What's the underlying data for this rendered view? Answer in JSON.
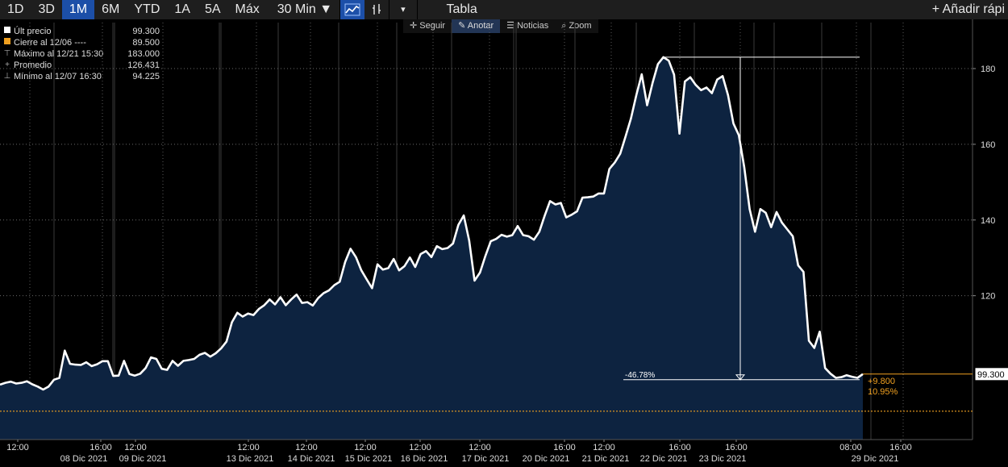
{
  "toolbar": {
    "periods": [
      "1D",
      "3D",
      "1M",
      "6M",
      "YTD",
      "1A",
      "5A",
      "Máx"
    ],
    "active_period": "1M",
    "interval": "30 Min ▼",
    "table_label": "Tabla",
    "add_label": "+ Añadir rápi",
    "dropdown_arrow": "▾"
  },
  "subbar": {
    "follow": "Seguir",
    "annotate": "Anotar",
    "news": "Noticias",
    "zoom": "Zoom"
  },
  "legend": {
    "last": {
      "label": "Últ precio",
      "value": "99.300",
      "color": "#ffffff"
    },
    "close": {
      "label": "Cierre al 12/06 ----",
      "value": "89.500",
      "color": "#f0a020"
    },
    "max": {
      "label": "Máximo al 12/21 15:30",
      "value": "183.000"
    },
    "avg": {
      "label": "Promedio",
      "value": "126.431"
    },
    "min": {
      "label": "Mínimo al 12/07 16:30",
      "value": "94.225"
    }
  },
  "chart_data": {
    "type": "area",
    "ylim": [
      82,
      193
    ],
    "y_ticks": [
      120,
      140,
      160,
      180
    ],
    "series": [
      {
        "values": [
          96.5,
          97.0,
          97.3,
          96.8,
          97.0,
          97.4,
          96.6,
          96.0,
          95.2,
          96.0,
          97.8,
          98.3,
          105.5,
          102.0,
          101.8,
          101.7,
          102.4,
          101.4,
          101.9,
          102.7,
          102.7,
          98.8,
          98.9,
          102.8,
          99.3,
          98.9,
          99.4,
          100.9,
          103.7,
          103.3,
          100.7,
          100.4,
          102.8,
          101.5,
          102.8,
          103.0,
          103.3,
          104.4,
          104.9,
          103.9,
          104.8,
          106.1,
          107.9,
          113.0,
          115.5,
          114.5,
          115.3,
          114.9,
          116.5,
          117.5,
          119.0,
          117.7,
          119.6,
          117.5,
          119.0,
          120.3,
          118.1,
          118.3,
          117.4,
          119.4,
          120.7,
          121.4,
          122.8,
          123.7,
          128.9,
          132.4,
          130.2,
          126.7,
          124.3,
          122.0,
          128.3,
          126.9,
          127.3,
          129.7,
          126.7,
          127.8,
          130.1,
          127.6,
          131.0,
          131.8,
          130.2,
          133.1,
          132.3,
          132.6,
          133.8,
          138.7,
          141.2,
          134.6,
          124.0,
          126.1,
          130.5,
          134.4,
          135.0,
          136.1,
          135.6,
          136.0,
          138.4,
          136.0,
          135.7,
          134.8,
          136.9,
          141.1,
          145.0,
          144.1,
          144.5,
          140.7,
          141.4,
          142.3,
          145.9,
          146.0,
          146.2,
          147.0,
          147.0,
          153.5,
          155.2,
          157.5,
          162.1,
          166.8,
          173.0,
          178.5,
          170.3,
          176.2,
          181.2,
          183.0,
          182.1,
          178.4,
          162.8,
          176.6,
          177.7,
          175.7,
          174.3,
          175.0,
          173.5,
          177.1,
          178.0,
          173.0,
          165.5,
          162.4,
          154.0,
          142.9,
          136.9,
          142.9,
          141.9,
          138.1,
          142.1,
          139.3,
          137.5,
          135.7,
          128.0,
          126.3,
          108.1,
          106.2,
          110.5,
          100.9,
          99.4,
          98.3,
          98.5,
          99.0,
          98.6,
          98.3,
          99.3
        ]
      },
      {
        "values": [
          89.5
        ]
      }
    ]
  },
  "chart_labels": {
    "last_price": "99.300",
    "change_abs": "+9.800",
    "change_pct": "10.95%",
    "drawdown": "-46.78%"
  },
  "x_axis": {
    "times": [
      "12:00",
      "16:00",
      "12:00",
      "12:00",
      "12:00",
      "12:00",
      "12:00",
      "12:00",
      "16:00",
      "12:00",
      "16:00",
      "16:00",
      "08:00",
      "16:00"
    ],
    "dates": [
      "08 Dic 2021",
      "09 Dic 2021",
      "13 Dic 2021",
      "14 Dic 2021",
      "15 Dic 2021",
      "16 Dic 2021",
      "17 Dic 2021",
      "20 Dic 2021",
      "21 Dic 2021",
      "22 Dic 2021",
      "23 Dic 2021",
      "29 Dic 2021"
    ]
  }
}
